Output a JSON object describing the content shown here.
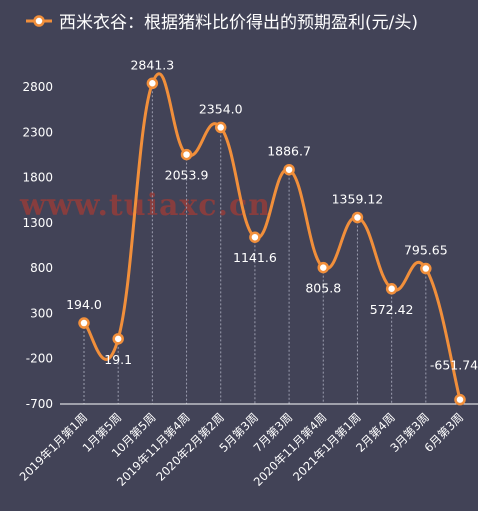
{
  "legend": {
    "label": "西米衣谷：根据猪料比价得出的预期盈利(元/头)",
    "watermark": "www.tuiaxc.cn"
  },
  "colors": {
    "background": "#424357",
    "line": "#f18f3b",
    "marker_fill": "#ffffff",
    "guide": "#9a9cae",
    "text": "#ffffff"
  },
  "chart_data": {
    "type": "line",
    "title": "",
    "xlabel": "",
    "ylabel": "",
    "categories": [
      "2019年1月第1周",
      "1月第5周",
      "10月第5周",
      "2019年11月第4周",
      "2020年2月第2周",
      "5月第3周",
      "7月第3周",
      "2020年11月第4周",
      "2021年1月第1周",
      "2月第4周",
      "3月第3周",
      "6月第3周"
    ],
    "series": [
      {
        "name": "西米衣谷：根据猪料比价得出的预期盈利(元/头)",
        "values": [
          194.0,
          19.1,
          2841.3,
          2053.9,
          2354.0,
          1141.6,
          1886.7,
          805.8,
          1359.12,
          572.42,
          795.65,
          -651.74
        ],
        "labels": [
          "194.0",
          "19.1",
          "2841.3",
          "2053.9",
          "2354.0",
          "1141.6",
          "1886.7",
          "805.8",
          "1359.12",
          "572.42",
          "795.65",
          "-651.74"
        ]
      }
    ],
    "yticks": [
      2800,
      2300,
      1800,
      1300,
      800,
      300,
      -200,
      -700
    ],
    "ylim": [
      -700,
      3000
    ],
    "grid": false,
    "legend_position": "top-left"
  }
}
